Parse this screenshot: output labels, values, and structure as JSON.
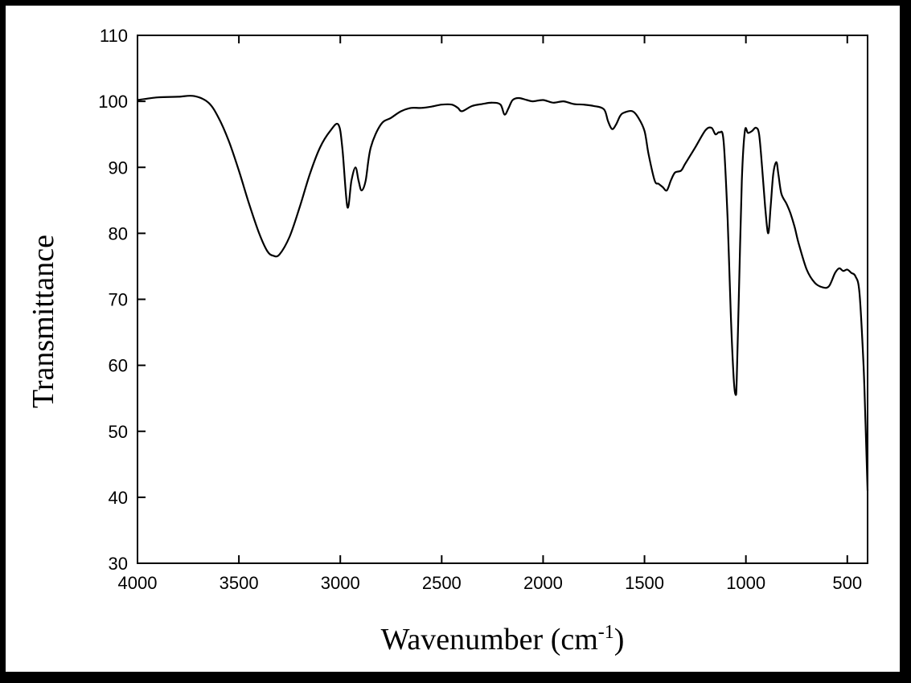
{
  "chart_data": {
    "type": "line",
    "xlabel": "Wavenumber (cm",
    "xlabel_superscript": "-1",
    "xlabel_suffix": ")",
    "ylabel": "Transmittance",
    "xlim": [
      4000,
      400
    ],
    "x_reversed": true,
    "ylim": [
      30,
      110
    ],
    "x_ticks": [
      4000,
      3500,
      3000,
      2500,
      2000,
      1500,
      1000,
      500
    ],
    "x_tick_labels": [
      "4000",
      "3500",
      "3000",
      "2500",
      "2000",
      "1500",
      "1000",
      "500"
    ],
    "y_ticks": [
      30,
      40,
      50,
      60,
      70,
      80,
      90,
      100,
      110
    ],
    "y_tick_labels": [
      "30",
      "40",
      "50",
      "60",
      "70",
      "80",
      "90",
      "100",
      "110"
    ],
    "grid": false,
    "line_color": "#000000",
    "series": [
      {
        "x": [
          4000,
          3900,
          3800,
          3720,
          3650,
          3600,
          3550,
          3500,
          3450,
          3400,
          3360,
          3330,
          3300,
          3250,
          3200,
          3150,
          3100,
          3050,
          3010,
          2990,
          2965,
          2945,
          2925,
          2910,
          2895,
          2875,
          2850,
          2800,
          2750,
          2700,
          2650,
          2600,
          2550,
          2500,
          2450,
          2420,
          2400,
          2350,
          2300,
          2250,
          2210,
          2190,
          2170,
          2150,
          2120,
          2080,
          2050,
          2000,
          1950,
          1900,
          1850,
          1800,
          1750,
          1700,
          1680,
          1660,
          1640,
          1620,
          1600,
          1560,
          1530,
          1500,
          1480,
          1450,
          1430,
          1410,
          1390,
          1370,
          1350,
          1320,
          1300,
          1250,
          1200,
          1170,
          1150,
          1130,
          1110,
          1090,
          1075,
          1060,
          1050,
          1045,
          1035,
          1020,
          1005,
          990,
          970,
          950,
          935,
          920,
          905,
          890,
          878,
          865,
          850,
          840,
          825,
          800,
          780,
          760,
          740,
          700,
          660,
          620,
          590,
          560,
          540,
          520,
          500,
          480,
          460,
          440,
          420,
          410,
          400
        ],
        "y": [
          100.2,
          100.6,
          100.7,
          100.8,
          99.8,
          97.5,
          94,
          89.5,
          84.5,
          80,
          77.3,
          76.6,
          76.8,
          79.5,
          84,
          89,
          93,
          95.5,
          96.5,
          93,
          84,
          88,
          90,
          88,
          86.5,
          88,
          93,
          96.5,
          97.5,
          98.5,
          99,
          99,
          99.2,
          99.5,
          99.5,
          99,
          98.5,
          99.3,
          99.6,
          99.8,
          99.5,
          98,
          99,
          100.2,
          100.5,
          100.2,
          100,
          100.2,
          99.8,
          100,
          99.6,
          99.5,
          99.3,
          98.8,
          97,
          95.8,
          96.5,
          97.8,
          98.3,
          98.5,
          97.5,
          95.5,
          92,
          88,
          87.5,
          87,
          86.5,
          88,
          89.2,
          89.5,
          90.5,
          93,
          95.6,
          96,
          95,
          95.3,
          94,
          82,
          68,
          58,
          55.5,
          58,
          70,
          88,
          95.5,
          95.2,
          95.5,
          96,
          95,
          90,
          84,
          80,
          84,
          89,
          90.8,
          89,
          86,
          84.5,
          83,
          81,
          78.5,
          74.5,
          72.5,
          71.8,
          72,
          74,
          74.7,
          74.3,
          74.5,
          74,
          73.5,
          71,
          60,
          51,
          41
        ]
      }
    ]
  }
}
